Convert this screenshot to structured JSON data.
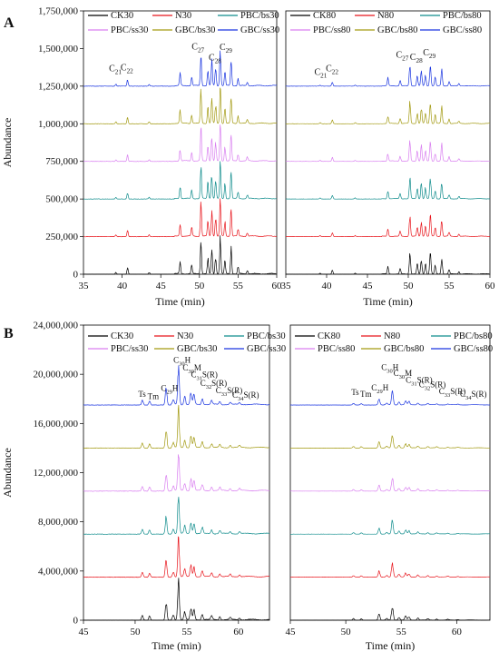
{
  "chart_data": [
    {
      "panel_label": "A",
      "type": "line",
      "layout": "stacked chromatograms, two side-by-side plots sharing a y axis",
      "ylabel": "Abundance",
      "xlabel": "Time (min)",
      "ylim": [
        0,
        1750000
      ],
      "yticks": [
        "0",
        "250,000",
        "500,000",
        "750,000",
        "1,000,000",
        "1,250,000",
        "1,500,000",
        "1,750,000"
      ],
      "xlim": [
        35,
        60
      ],
      "xticks": [
        "35",
        "40",
        "45",
        "50",
        "55",
        "60"
      ],
      "trace_offsets": [
        0,
        250000,
        500000,
        750000,
        1000000,
        1250000
      ],
      "peaks": [
        {
          "t": 39.2,
          "h": 0.05
        },
        {
          "t": 40.7,
          "h": 0.18
        },
        {
          "t": 43.5,
          "h": 0.05
        },
        {
          "t": 47.5,
          "h": 0.35
        },
        {
          "t": 49.0,
          "h": 0.25
        },
        {
          "t": 50.2,
          "h": 0.95
        },
        {
          "t": 51.1,
          "h": 0.45
        },
        {
          "t": 51.6,
          "h": 0.7
        },
        {
          "t": 52.1,
          "h": 0.5
        },
        {
          "t": 52.7,
          "h": 1.0
        },
        {
          "t": 53.3,
          "h": 0.4
        },
        {
          "t": 54.1,
          "h": 0.75
        },
        {
          "t": 55.0,
          "h": 0.2
        },
        {
          "t": 56.2,
          "h": 0.1
        }
      ],
      "plots": [
        {
          "side": "left",
          "legend": [
            {
              "name": "CK30",
              "color": "#000000"
            },
            {
              "name": "N30",
              "color": "#e8141b"
            },
            {
              "name": "PBC/bs30",
              "color": "#0f8c8c"
            },
            {
              "name": "PBC/ss30",
              "color": "#d97ff0"
            },
            {
              "name": "GBC/bs30",
              "color": "#a39a12"
            },
            {
              "name": "GBC/ss30",
              "color": "#1a35e0"
            }
          ],
          "annotations": [
            {
              "base": "C",
              "sub": "21",
              "t": 38.3,
              "y": 1350000
            },
            {
              "base": "C",
              "sub": "22",
              "t": 39.8,
              "y": 1355000
            },
            {
              "base": "C",
              "sub": "27",
              "t": 49.0,
              "y": 1495000
            },
            {
              "base": "C",
              "sub": "28",
              "t": 51.2,
              "y": 1420000
            },
            {
              "base": "C",
              "sub": "29",
              "t": 52.6,
              "y": 1490000
            }
          ]
        },
        {
          "side": "right",
          "legend": [
            {
              "name": "CK80",
              "color": "#000000"
            },
            {
              "name": "N80",
              "color": "#e8141b"
            },
            {
              "name": "PBC/bs80",
              "color": "#0f8c8c"
            },
            {
              "name": "PBC/ss80",
              "color": "#d97ff0"
            },
            {
              "name": "GBC/bs80",
              "color": "#a39a12"
            },
            {
              "name": "GBC/ss80",
              "color": "#1a35e0"
            }
          ],
          "annotations": [
            {
              "base": "C",
              "sub": "21",
              "t": 38.5,
              "y": 1325000
            },
            {
              "base": "C",
              "sub": "22",
              "t": 39.9,
              "y": 1350000
            },
            {
              "base": "C",
              "sub": "27",
              "t": 48.5,
              "y": 1440000
            },
            {
              "base": "C",
              "sub": "28",
              "t": 50.2,
              "y": 1425000
            },
            {
              "base": "C",
              "sub": "29",
              "t": 51.8,
              "y": 1455000
            }
          ]
        }
      ]
    },
    {
      "panel_label": "B",
      "type": "line",
      "layout": "stacked chromatograms, two side-by-side plots sharing a y axis",
      "ylabel": "Abundance",
      "xlabel": "Time (min)",
      "ylim": [
        0,
        24000000
      ],
      "yticks": [
        "0",
        "4,000,000",
        "8,000,000",
        "12,000,000",
        "16,000,000",
        "20,000,000",
        "24,000,000"
      ],
      "xlim": [
        45,
        63
      ],
      "xticks": [
        "45",
        "50",
        "55",
        "60"
      ],
      "trace_offsets": [
        0,
        3500000,
        7000000,
        10500000,
        14000000,
        17500000
      ],
      "peaks": [
        {
          "t": 50.7,
          "h": 0.12
        },
        {
          "t": 51.4,
          "h": 0.1
        },
        {
          "t": 53.0,
          "h": 0.45
        },
        {
          "t": 53.7,
          "h": 0.12
        },
        {
          "t": 54.2,
          "h": 1.0
        },
        {
          "t": 54.8,
          "h": 0.2
        },
        {
          "t": 55.4,
          "h": 0.3
        },
        {
          "t": 55.7,
          "h": 0.25
        },
        {
          "t": 56.5,
          "h": 0.15
        },
        {
          "t": 57.4,
          "h": 0.1
        },
        {
          "t": 58.2,
          "h": 0.08
        },
        {
          "t": 59.2,
          "h": 0.06
        },
        {
          "t": 60.1,
          "h": 0.05
        }
      ],
      "plots": [
        {
          "side": "left",
          "legend": [
            {
              "name": "CK30",
              "color": "#000000"
            },
            {
              "name": "N30",
              "color": "#e8141b"
            },
            {
              "name": "PBC/bs30",
              "color": "#0f8c8c"
            },
            {
              "name": "PBC/ss30",
              "color": "#d97ff0"
            },
            {
              "name": "GBC/bs30",
              "color": "#a39a12"
            },
            {
              "name": "GBC/ss30",
              "color": "#1a35e0"
            }
          ],
          "annotations": [
            {
              "base": "Ts",
              "sub": "",
              "t": 50.3,
              "y": 18150000
            },
            {
              "base": "Tm",
              "sub": "",
              "t": 51.2,
              "y": 18000000
            },
            {
              "base": "C",
              "sub": "29",
              "t": 52.5,
              "y": 18650000,
              "suffix": "H"
            },
            {
              "base": "C",
              "sub": "30",
              "t": 53.7,
              "y": 20950000,
              "suffix": "H"
            },
            {
              "base": "C",
              "sub": "30",
              "t": 54.6,
              "y": 20300000,
              "suffix": "M"
            },
            {
              "base": "C",
              "sub": "31",
              "t": 55.4,
              "y": 19750000,
              "suffix": "S(R)"
            },
            {
              "base": "C",
              "sub": "32",
              "t": 56.3,
              "y": 19050000,
              "suffix": "S(R)"
            },
            {
              "base": "C",
              "sub": "33",
              "t": 57.8,
              "y": 18450000,
              "suffix": "S(R)"
            },
            {
              "base": "C",
              "sub": "34",
              "t": 59.4,
              "y": 18100000,
              "suffix": "S(R)"
            }
          ]
        },
        {
          "side": "right",
          "legend": [
            {
              "name": "CK80",
              "color": "#000000"
            },
            {
              "name": "N80",
              "color": "#e8141b"
            },
            {
              "name": "PBC/bs80",
              "color": "#0f8c8c"
            },
            {
              "name": "PBC/ss80",
              "color": "#d97ff0"
            },
            {
              "name": "GBC/bs80",
              "color": "#a39a12"
            },
            {
              "name": "GBC/ss80",
              "color": "#1a35e0"
            }
          ],
          "annotations": [
            {
              "base": "Ts",
              "sub": "",
              "t": 50.5,
              "y": 18300000
            },
            {
              "base": "Tm",
              "sub": "",
              "t": 51.3,
              "y": 18150000
            },
            {
              "base": "C",
              "sub": "29",
              "t": 52.3,
              "y": 18700000,
              "suffix": "H"
            },
            {
              "base": "C",
              "sub": "30",
              "t": 53.2,
              "y": 20350000,
              "suffix": "H"
            },
            {
              "base": "C",
              "sub": "30",
              "t": 54.3,
              "y": 19850000,
              "suffix": "M"
            },
            {
              "base": "C",
              "sub": "31",
              "t": 55.4,
              "y": 19300000,
              "suffix": "S(R)"
            },
            {
              "base": "C",
              "sub": "32",
              "t": 56.6,
              "y": 18950000,
              "suffix": "S(R)"
            },
            {
              "base": "C",
              "sub": "33",
              "t": 58.4,
              "y": 18400000,
              "suffix": "S(R)"
            },
            {
              "base": "C",
              "sub": "34",
              "t": 60.3,
              "y": 18150000,
              "suffix": "S(R)"
            }
          ]
        }
      ]
    }
  ]
}
